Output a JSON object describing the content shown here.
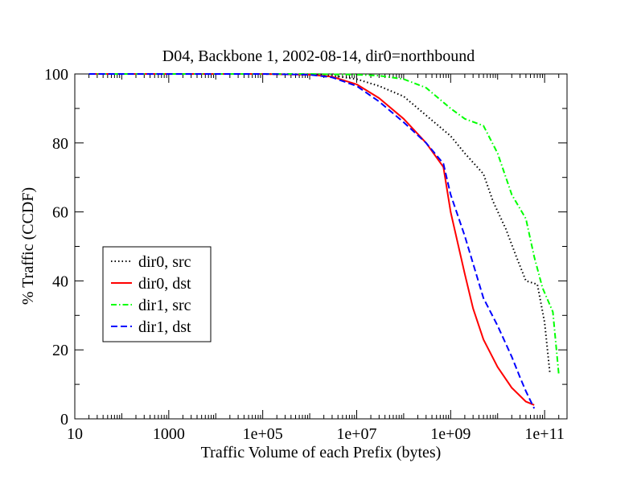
{
  "chart_data": {
    "type": "line",
    "title": "D04, Backbone 1, 2002-08-14, dir0=northbound",
    "xlabel": "Traffic Volume of each Prefix (bytes)",
    "ylabel": "% Traffic (CCDF)",
    "xscale": "log",
    "xlim": [
      10,
      300000000000
    ],
    "ylim": [
      0,
      100
    ],
    "x_ticks": [
      10,
      1000,
      100000,
      10000000,
      1000000000,
      100000000000
    ],
    "x_tick_labels": [
      "10",
      "1000",
      "1e+05",
      "1e+07",
      "1e+09",
      "1e+11"
    ],
    "y_ticks": [
      0,
      20,
      40,
      60,
      80,
      100
    ],
    "y_tick_labels": [
      "0",
      "20",
      "40",
      "60",
      "80",
      "100"
    ],
    "grid": false,
    "legend_position": "middle-left",
    "series": [
      {
        "name": "dir0, src",
        "color": "#000000",
        "dash": "dotted",
        "x": [
          20,
          1000,
          100000,
          1000000,
          3000000,
          10000000,
          30000000,
          100000000,
          300000000,
          1000000000,
          2000000000,
          5000000000,
          8000000000,
          15000000000,
          25000000000,
          40000000000,
          70000000000,
          100000000000,
          130000000000
        ],
        "y": [
          100,
          100,
          100,
          99.8,
          99.5,
          98.5,
          96.5,
          93.5,
          88,
          82,
          77,
          71,
          63,
          55,
          47,
          40,
          39,
          28,
          13
        ]
      },
      {
        "name": "dir0, dst",
        "color": "#ff0000",
        "dash": "solid",
        "x": [
          20,
          1000,
          100000,
          1000000,
          3000000,
          10000000,
          30000000,
          100000000,
          300000000,
          700000000,
          1000000000,
          2000000000,
          3000000000,
          5000000000,
          10000000000,
          20000000000,
          40000000000,
          60000000000
        ],
        "y": [
          100,
          100,
          100,
          99.8,
          99.2,
          97,
          93,
          87,
          80,
          73,
          60,
          42,
          32,
          23,
          15,
          9,
          5,
          4
        ]
      },
      {
        "name": "dir1, src",
        "color": "#00ff00",
        "dash": "dash-dot",
        "x": [
          20,
          1000,
          100000,
          1000000,
          10000000,
          30000000,
          100000000,
          300000000,
          1000000000,
          2000000000,
          5000000000,
          10000000000,
          20000000000,
          40000000000,
          60000000000,
          90000000000,
          150000000000,
          200000000000
        ],
        "y": [
          100,
          100,
          100,
          100,
          99.8,
          99.5,
          98.5,
          96,
          90,
          87,
          85,
          77,
          65,
          58,
          47,
          38,
          31,
          13
        ]
      },
      {
        "name": "dir1, dst",
        "color": "#0000ff",
        "dash": "dashed",
        "x": [
          20,
          1000,
          100000,
          1000000,
          3000000,
          10000000,
          30000000,
          100000000,
          300000000,
          700000000,
          1000000000,
          2000000000,
          3000000000,
          5000000000,
          10000000000,
          20000000000,
          30000000000,
          40000000000,
          60000000000
        ],
        "y": [
          100,
          100,
          100,
          99.8,
          99,
          96.5,
          92,
          86,
          80,
          74,
          65,
          53,
          45,
          35,
          27,
          18,
          12,
          8,
          3
        ]
      }
    ]
  }
}
